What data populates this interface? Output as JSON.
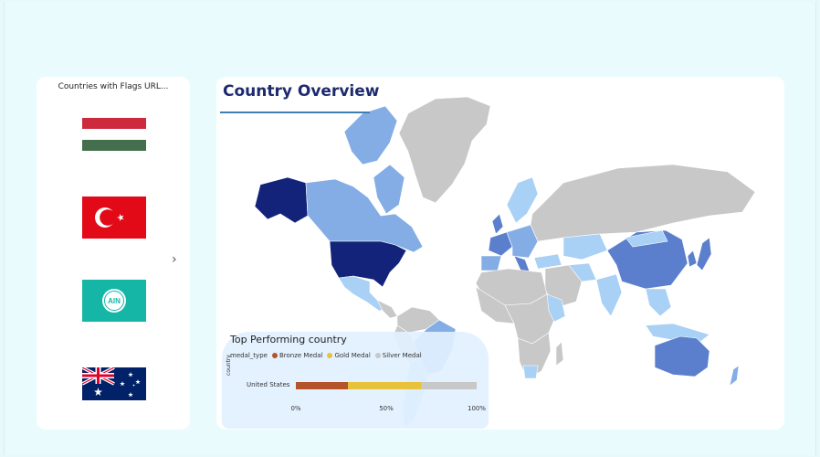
{
  "flags_panel": {
    "title": "Countries with Flags URL...",
    "flags": [
      {
        "country": "Hungary",
        "icon": "hungary-flag-icon",
        "colors": [
          "#cd2a3e",
          "#ffffff",
          "#436f4d"
        ]
      },
      {
        "country": "Turkey",
        "icon": "turkey-flag-icon",
        "colors": [
          "#e30a17",
          "#ffffff"
        ]
      },
      {
        "country": "Individual Neutral Athletes",
        "icon": "ain-flag-icon",
        "text": "AIN",
        "colors": [
          "#16b6a6",
          "#ffffff"
        ]
      },
      {
        "country": "Australia",
        "icon": "australia-flag-icon",
        "colors": [
          "#012169",
          "#ffffff",
          "#e4002b"
        ]
      }
    ],
    "next_icon": "chevron-right-icon"
  },
  "overview": {
    "title": "Country Overview",
    "map_colors": {
      "none": "#c8c8c8",
      "light": "#a9d0f5",
      "mid": "#84ade6",
      "strong": "#5b7fcd",
      "dark": "#14237a"
    }
  },
  "top_performing": {
    "title": "Top Performing country",
    "legend_title": "medal_type",
    "y_axis_title": "country"
  },
  "chart_data": {
    "type": "bar",
    "orientation": "horizontal",
    "stacked": "100%",
    "title": "Top Performing country",
    "ylabel": "country",
    "categories": [
      "United States"
    ],
    "series": [
      {
        "name": "Bronze Medal",
        "values": [
          29
        ],
        "color": "#b5532b"
      },
      {
        "name": "Gold Medal",
        "values": [
          40
        ],
        "color": "#e7c23a"
      },
      {
        "name": "Silver Medal",
        "values": [
          31
        ],
        "color": "#c8c8c8"
      }
    ],
    "xticks": [
      "0%",
      "50%",
      "100%"
    ],
    "xlim": [
      0,
      100
    ],
    "legend": "top"
  }
}
